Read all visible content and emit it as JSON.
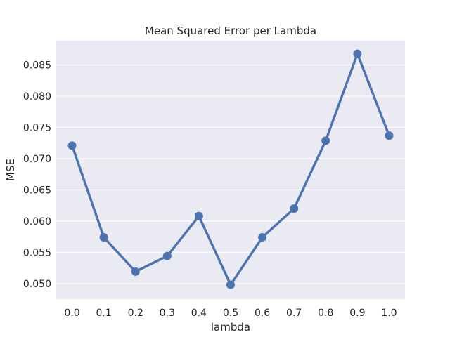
{
  "chart_data": {
    "type": "line",
    "title": "Mean Squared Error per Lambda",
    "xlabel": "lambda",
    "ylabel": "MSE",
    "categories": [
      "0.0",
      "0.1",
      "0.2",
      "0.3",
      "0.4",
      "0.5",
      "0.6",
      "0.7",
      "0.8",
      "0.9",
      "1.0"
    ],
    "series": [
      {
        "name": "",
        "values": [
          0.0721,
          0.0574,
          0.0519,
          0.0544,
          0.0608,
          0.0498,
          0.0574,
          0.062,
          0.0729,
          0.0868,
          0.0737
        ]
      }
    ],
    "yticks": [
      "0.050",
      "0.055",
      "0.060",
      "0.065",
      "0.070",
      "0.075",
      "0.080",
      "0.085"
    ],
    "ylim": [
      0.0475,
      0.0889
    ],
    "grid": true,
    "colors": {
      "series": "#4c72b0",
      "plot_bg": "#eaeaf2",
      "grid": "#ffffff"
    }
  }
}
